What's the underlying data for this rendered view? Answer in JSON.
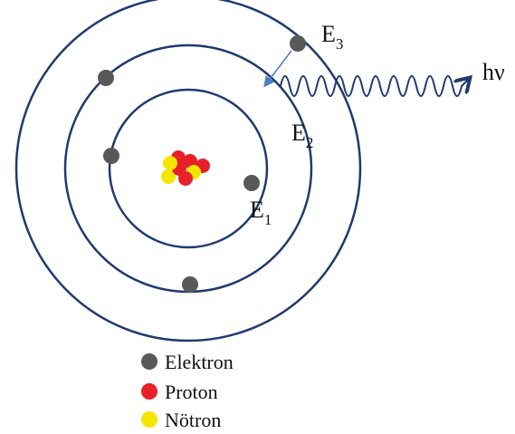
{
  "levels": [
    {
      "symbol": "E",
      "index": "1"
    },
    {
      "symbol": "E",
      "index": "2"
    },
    {
      "symbol": "E",
      "index": "3"
    }
  ],
  "photon": "hν",
  "legend": [
    "Elektron",
    "Proton",
    "Nötron"
  ]
}
